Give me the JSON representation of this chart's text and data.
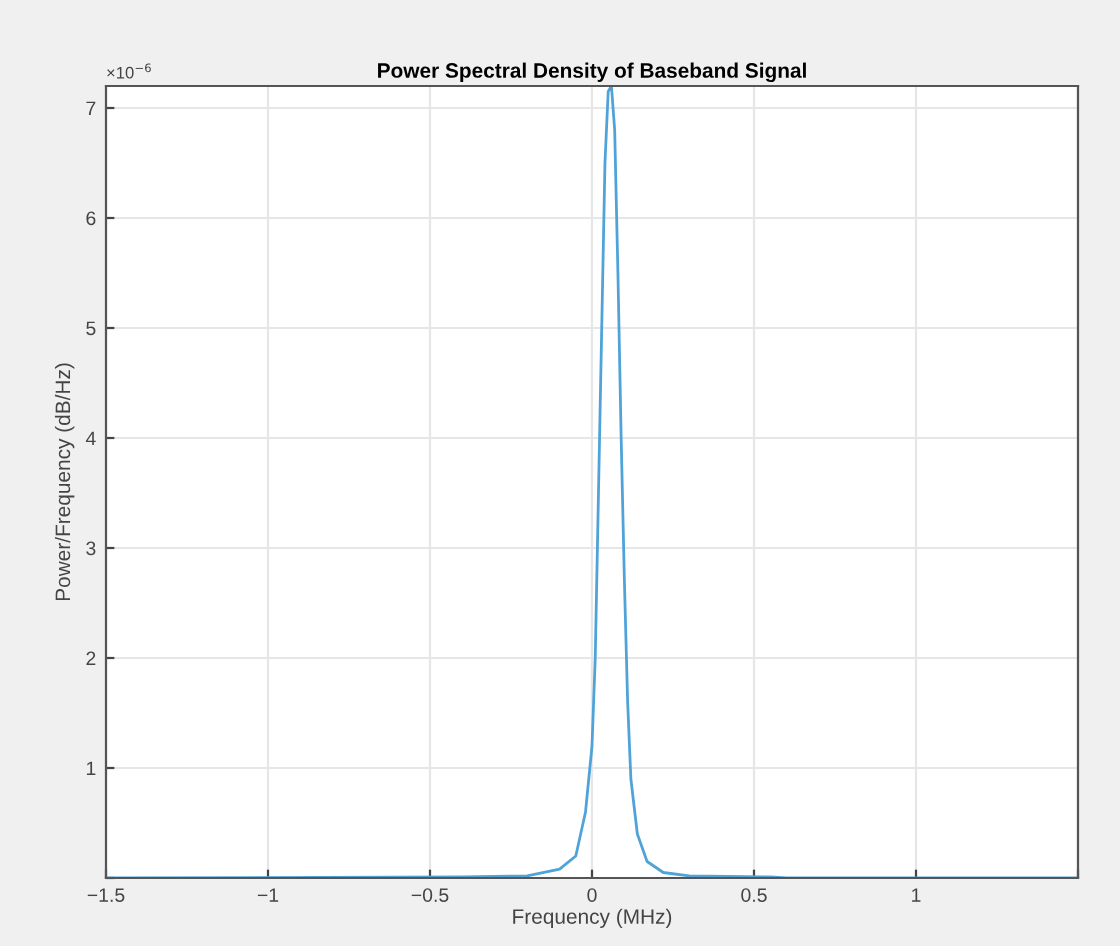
{
  "chart_data": {
    "type": "line",
    "title": "Power Spectral Density of Baseband Signal",
    "xlabel": "Frequency (MHz)",
    "ylabel": "Power/Frequency (dB/Hz)",
    "annotations": [
      "×10$^{−6}$"
    ],
    "series": [
      {
        "color": "#4fa3d8",
        "x": [
          -1.5,
          -0.4,
          -0.2,
          -0.1,
          -0.05,
          -0.02,
          0,
          0.01,
          0.02,
          0.03,
          0.04,
          0.05,
          0.06,
          0.07,
          0.08,
          0.09,
          0.1,
          0.11,
          0.12,
          0.14,
          0.17,
          0.22,
          0.3,
          0.55,
          0.6,
          1.5
        ],
        "values": [
          0,
          0.01,
          0.02,
          0.08,
          0.2,
          0.6,
          1.2,
          2,
          3.5,
          5,
          6.5,
          7.15,
          7.2,
          6.8,
          5.5,
          4,
          2.7,
          1.6,
          0.9,
          0.4,
          0.15,
          0.05,
          0.02,
          0.01,
          0,
          0
        ]
      }
    ],
    "xlim": [
      -1.5,
      1.5
    ],
    "ylim": [
      0,
      7.2
    ],
    "xticks": [
      -1.5,
      -1,
      -0.5,
      0,
      0.5,
      1,
      {
        "value": 1.5,
        "label": null
      }
    ],
    "yticks": [
      {
        "value": 0,
        "label": null
      },
      1,
      2,
      3,
      4,
      5,
      6,
      7
    ],
    "grid": true,
    "legend": false
  }
}
